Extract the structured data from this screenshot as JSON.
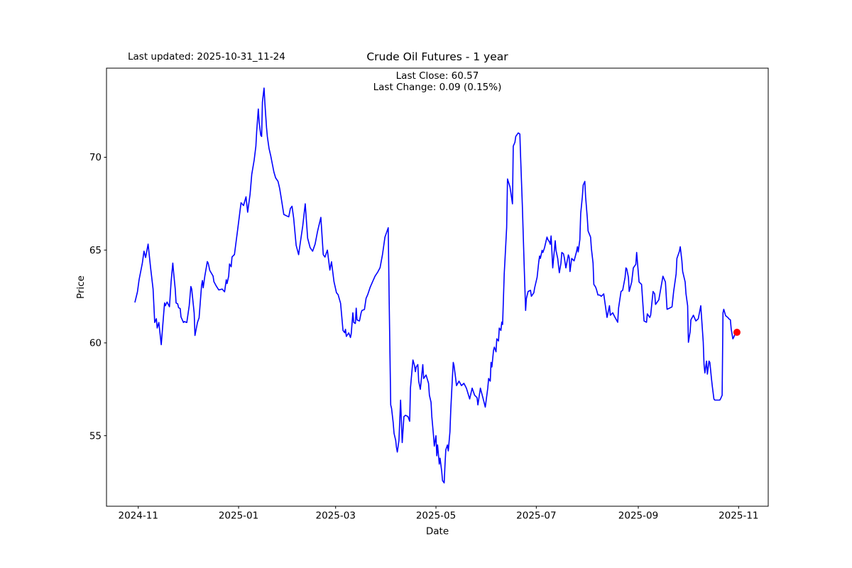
{
  "figure": {
    "last_updated": "Last updated: 2025-10-31_11-24",
    "title": "Crude Oil Futures - 1 year",
    "annotation": {
      "line1": "Last Close: 60.57",
      "line2": "Last Change: 0.09 (0.15%)"
    }
  },
  "chart_data": {
    "type": "line",
    "title": "Crude Oil Futures - 1 year",
    "xlabel": "Date",
    "ylabel": "Price",
    "series_name": "Crude Oil Futures close price",
    "line_color": "#0000ff",
    "marker_color": "#ff0000",
    "axis_color": "#000000",
    "background_color": "#ffffff",
    "grid": false,
    "legend": false,
    "last_close": 60.57,
    "last_change": 0.09,
    "last_change_pct": "0.15%",
    "x_unit": "days since 2024-10-30",
    "x_start_date": "2024-10-30",
    "x_end_date": "2025-10-31",
    "xlim_days": [
      -17.3,
      385
    ],
    "ylim": [
      51.2,
      74.8
    ],
    "yticks": [
      55,
      60,
      65,
      70
    ],
    "xticks": [
      {
        "label": "2024-11",
        "day": 2
      },
      {
        "label": "2025-01",
        "day": 63
      },
      {
        "label": "2025-03",
        "day": 122
      },
      {
        "label": "2025-05",
        "day": 183
      },
      {
        "label": "2025-07",
        "day": 244
      },
      {
        "label": "2025-09",
        "day": 306
      },
      {
        "label": "2025-11",
        "day": 367
      }
    ],
    "points": [
      [
        0,
        62.2
      ],
      [
        1.5,
        62.75
      ],
      [
        2.5,
        63.4
      ],
      [
        4.5,
        64.3
      ],
      [
        5.5,
        64.94
      ],
      [
        6.5,
        64.6
      ],
      [
        8,
        65.32
      ],
      [
        9.5,
        64.05
      ],
      [
        11,
        62.9
      ],
      [
        12,
        61.1
      ],
      [
        13,
        61.3
      ],
      [
        13.5,
        60.8
      ],
      [
        14.5,
        61.1
      ],
      [
        16,
        59.9
      ],
      [
        17.5,
        61.6
      ],
      [
        18,
        62.15
      ],
      [
        18.5,
        62.0
      ],
      [
        19.5,
        62.2
      ],
      [
        21,
        61.95
      ],
      [
        22,
        63.3
      ],
      [
        23,
        64.3
      ],
      [
        23.5,
        63.8
      ],
      [
        24.5,
        62.9
      ],
      [
        25,
        62.15
      ],
      [
        26,
        62.1
      ],
      [
        26.5,
        61.9
      ],
      [
        27.5,
        61.85
      ],
      [
        28,
        61.4
      ],
      [
        29.5,
        61.1
      ],
      [
        30,
        61.15
      ],
      [
        31.5,
        61.1
      ],
      [
        33,
        62.0
      ],
      [
        34,
        63.04
      ],
      [
        34.5,
        62.9
      ],
      [
        36,
        61.6
      ],
      [
        36.5,
        60.4
      ],
      [
        38,
        61.1
      ],
      [
        39,
        61.35
      ],
      [
        40.5,
        63.1
      ],
      [
        41,
        63.36
      ],
      [
        41.5,
        62.97
      ],
      [
        42.5,
        63.6
      ],
      [
        44,
        64.38
      ],
      [
        44.5,
        64.3
      ],
      [
        45.5,
        63.9
      ],
      [
        46.5,
        63.75
      ],
      [
        47.5,
        63.6
      ],
      [
        48,
        63.3
      ],
      [
        49.5,
        63.05
      ],
      [
        51,
        62.85
      ],
      [
        53,
        62.9
      ],
      [
        54.5,
        62.75
      ],
      [
        55.5,
        63.4
      ],
      [
        56,
        63.2
      ],
      [
        57,
        63.6
      ],
      [
        57.5,
        64.25
      ],
      [
        58.5,
        64.1
      ],
      [
        59,
        64.63
      ],
      [
        60.5,
        64.76
      ],
      [
        62.5,
        66.15
      ],
      [
        64.5,
        67.55
      ],
      [
        66,
        67.4
      ],
      [
        67.5,
        67.87
      ],
      [
        68.5,
        67.04
      ],
      [
        70,
        68.0
      ],
      [
        71,
        69.08
      ],
      [
        72.5,
        69.85
      ],
      [
        73.5,
        70.6
      ],
      [
        74,
        71.38
      ],
      [
        75,
        72.6
      ],
      [
        75.5,
        71.88
      ],
      [
        76.5,
        71.18
      ],
      [
        77,
        71.12
      ],
      [
        77.5,
        72.97
      ],
      [
        78.5,
        73.73
      ],
      [
        79,
        72.9
      ],
      [
        80,
        71.6
      ],
      [
        80.5,
        71.1
      ],
      [
        81.5,
        70.48
      ],
      [
        82.5,
        70.1
      ],
      [
        83.5,
        69.65
      ],
      [
        84.5,
        69.2
      ],
      [
        85.5,
        68.89
      ],
      [
        87,
        68.7
      ],
      [
        88,
        68.32
      ],
      [
        89,
        67.75
      ],
      [
        90.5,
        66.92
      ],
      [
        92,
        66.85
      ],
      [
        93.5,
        66.79
      ],
      [
        94.5,
        67.24
      ],
      [
        95.5,
        67.36
      ],
      [
        96.5,
        66.72
      ],
      [
        98,
        65.26
      ],
      [
        99.5,
        64.75
      ],
      [
        100.5,
        65.38
      ],
      [
        102,
        66.3
      ],
      [
        103.5,
        67.49
      ],
      [
        105,
        65.64
      ],
      [
        106.5,
        65.13
      ],
      [
        108,
        64.94
      ],
      [
        109.5,
        65.32
      ],
      [
        111,
        66.0
      ],
      [
        113,
        66.76
      ],
      [
        114.5,
        64.75
      ],
      [
        115.5,
        64.62
      ],
      [
        117,
        65.0
      ],
      [
        118.5,
        63.92
      ],
      [
        119.5,
        64.37
      ],
      [
        121,
        63.3
      ],
      [
        122.5,
        62.7
      ],
      [
        123.5,
        62.6
      ],
      [
        125,
        62.13
      ],
      [
        126.5,
        60.67
      ],
      [
        127.5,
        60.55
      ],
      [
        128,
        60.73
      ],
      [
        128.5,
        60.35
      ],
      [
        130,
        60.54
      ],
      [
        131,
        60.29
      ],
      [
        131.5,
        60.5
      ],
      [
        132.5,
        61.62
      ],
      [
        133,
        61.1
      ],
      [
        134,
        61.05
      ],
      [
        134.5,
        61.87
      ],
      [
        135,
        61.24
      ],
      [
        136.5,
        61.18
      ],
      [
        137.5,
        61.62
      ],
      [
        138,
        61.75
      ],
      [
        139.5,
        61.8
      ],
      [
        140.5,
        62.4
      ],
      [
        141.5,
        62.6
      ],
      [
        143,
        63.0
      ],
      [
        144.5,
        63.3
      ],
      [
        146,
        63.6
      ],
      [
        147.5,
        63.8
      ],
      [
        149,
        64.05
      ],
      [
        150.5,
        64.75
      ],
      [
        152,
        65.7
      ],
      [
        153,
        65.95
      ],
      [
        154,
        66.2
      ],
      [
        154.5,
        62.65
      ],
      [
        155.5,
        56.66
      ],
      [
        156,
        56.47
      ],
      [
        157,
        55.7
      ],
      [
        157.5,
        55.13
      ],
      [
        158.5,
        54.75
      ],
      [
        159,
        54.37
      ],
      [
        159.5,
        54.12
      ],
      [
        160.5,
        54.75
      ],
      [
        161.5,
        56.92
      ],
      [
        162.5,
        54.63
      ],
      [
        163.5,
        56.03
      ],
      [
        164.5,
        56.1
      ],
      [
        166,
        56.03
      ],
      [
        167,
        55.78
      ],
      [
        167.5,
        57.56
      ],
      [
        168.5,
        58.57
      ],
      [
        169,
        59.08
      ],
      [
        170,
        58.77
      ],
      [
        170.5,
        58.45
      ],
      [
        171,
        58.7
      ],
      [
        172,
        58.83
      ],
      [
        172.5,
        57.94
      ],
      [
        173.5,
        57.5
      ],
      [
        174,
        57.94
      ],
      [
        175,
        58.83
      ],
      [
        175.5,
        58.08
      ],
      [
        177,
        58.27
      ],
      [
        178.5,
        57.82
      ],
      [
        179,
        57.18
      ],
      [
        180,
        56.8
      ],
      [
        180.5,
        56.03
      ],
      [
        181.5,
        55.0
      ],
      [
        182,
        54.44
      ],
      [
        183,
        55.0
      ],
      [
        183.5,
        53.92
      ],
      [
        184,
        54.5
      ],
      [
        185,
        53.47
      ],
      [
        185.5,
        53.79
      ],
      [
        186.5,
        53.09
      ],
      [
        187,
        52.58
      ],
      [
        188,
        52.46
      ],
      [
        188.5,
        53.47
      ],
      [
        189,
        54.24
      ],
      [
        190,
        54.5
      ],
      [
        190.5,
        54.18
      ],
      [
        191.5,
        55.2
      ],
      [
        192,
        56.4
      ],
      [
        193,
        58.14
      ],
      [
        193.5,
        58.95
      ],
      [
        194,
        58.77
      ],
      [
        195,
        58.08
      ],
      [
        195.5,
        57.7
      ],
      [
        197,
        57.94
      ],
      [
        198.5,
        57.7
      ],
      [
        200,
        57.82
      ],
      [
        201.5,
        57.56
      ],
      [
        203.5,
        56.98
      ],
      [
        205,
        57.56
      ],
      [
        206.5,
        57.18
      ],
      [
        208,
        57.05
      ],
      [
        208.5,
        56.66
      ],
      [
        210,
        57.56
      ],
      [
        211.5,
        57.05
      ],
      [
        213,
        56.54
      ],
      [
        214.5,
        57.56
      ],
      [
        215,
        58.08
      ],
      [
        216,
        57.94
      ],
      [
        216.5,
        58.95
      ],
      [
        217,
        58.7
      ],
      [
        218,
        59.6
      ],
      [
        218.5,
        59.77
      ],
      [
        219.5,
        59.52
      ],
      [
        220,
        60.22
      ],
      [
        221,
        60.1
      ],
      [
        221.5,
        60.8
      ],
      [
        222.5,
        60.67
      ],
      [
        223,
        61.12
      ],
      [
        223.5,
        60.99
      ],
      [
        224.5,
        63.74
      ],
      [
        225,
        64.51
      ],
      [
        226,
        66.22
      ],
      [
        226.5,
        68.83
      ],
      [
        228,
        68.4
      ],
      [
        229.5,
        67.49
      ],
      [
        230,
        70.6
      ],
      [
        231,
        70.8
      ],
      [
        231.5,
        71.12
      ],
      [
        233,
        71.31
      ],
      [
        234,
        71.25
      ],
      [
        234.5,
        69.97
      ],
      [
        235.5,
        67.4
      ],
      [
        236.5,
        64.5
      ],
      [
        237.5,
        61.75
      ],
      [
        238,
        62.39
      ],
      [
        239,
        62.77
      ],
      [
        240.5,
        62.83
      ],
      [
        241,
        62.51
      ],
      [
        242.5,
        62.7
      ],
      [
        243,
        62.96
      ],
      [
        244.5,
        63.53
      ],
      [
        245.5,
        64.36
      ],
      [
        246,
        64.68
      ],
      [
        246.5,
        64.55
      ],
      [
        247.5,
        64.99
      ],
      [
        248,
        64.87
      ],
      [
        249,
        65.12
      ],
      [
        250.5,
        65.7
      ],
      [
        251,
        65.57
      ],
      [
        252,
        65.44
      ],
      [
        252.5,
        65.31
      ],
      [
        253,
        65.76
      ],
      [
        254,
        64.04
      ],
      [
        255.5,
        65.5
      ],
      [
        256,
        64.99
      ],
      [
        257,
        64.55
      ],
      [
        257.5,
        64.17
      ],
      [
        258,
        63.78
      ],
      [
        259,
        64.3
      ],
      [
        259.5,
        64.87
      ],
      [
        260.5,
        64.8
      ],
      [
        261,
        64.61
      ],
      [
        262,
        64.04
      ],
      [
        263.5,
        64.74
      ],
      [
        264,
        64.61
      ],
      [
        264.5,
        63.84
      ],
      [
        265.5,
        64.55
      ],
      [
        267,
        64.42
      ],
      [
        268.5,
        64.93
      ],
      [
        269,
        65.18
      ],
      [
        269.5,
        64.9
      ],
      [
        270.5,
        65.57
      ],
      [
        271,
        66.97
      ],
      [
        272,
        67.87
      ],
      [
        272.5,
        68.5
      ],
      [
        273.5,
        68.7
      ],
      [
        274,
        67.87
      ],
      [
        275,
        66.72
      ],
      [
        275.5,
        66.03
      ],
      [
        277,
        65.7
      ],
      [
        277.5,
        65.06
      ],
      [
        278.5,
        64.3
      ],
      [
        279,
        63.15
      ],
      [
        280,
        63.02
      ],
      [
        280.5,
        62.9
      ],
      [
        281.5,
        62.58
      ],
      [
        282.5,
        62.58
      ],
      [
        283.5,
        62.51
      ],
      [
        285,
        62.64
      ],
      [
        287,
        61.37
      ],
      [
        288.5,
        62.0
      ],
      [
        289,
        61.49
      ],
      [
        290.5,
        61.62
      ],
      [
        291.5,
        61.43
      ],
      [
        293.5,
        61.11
      ],
      [
        294,
        61.87
      ],
      [
        295.5,
        62.77
      ],
      [
        296.5,
        62.83
      ],
      [
        298,
        63.53
      ],
      [
        298.5,
        64.04
      ],
      [
        299,
        63.98
      ],
      [
        300,
        63.53
      ],
      [
        300.5,
        62.77
      ],
      [
        302,
        63.28
      ],
      [
        303,
        64.04
      ],
      [
        304.5,
        64.23
      ],
      [
        305,
        64.87
      ],
      [
        306.5,
        63.28
      ],
      [
        308,
        63.15
      ],
      [
        309.5,
        61.18
      ],
      [
        311,
        61.11
      ],
      [
        311.5,
        61.56
      ],
      [
        313,
        61.37
      ],
      [
        313.5,
        61.49
      ],
      [
        315,
        62.77
      ],
      [
        316,
        62.64
      ],
      [
        316.5,
        62.07
      ],
      [
        318.5,
        62.32
      ],
      [
        321,
        63.59
      ],
      [
        322.5,
        63.28
      ],
      [
        323.5,
        61.81
      ],
      [
        325,
        61.87
      ],
      [
        326.5,
        61.94
      ],
      [
        327.5,
        62.77
      ],
      [
        329,
        63.72
      ],
      [
        329.5,
        64.55
      ],
      [
        331,
        64.93
      ],
      [
        331.5,
        65.18
      ],
      [
        332.5,
        64.42
      ],
      [
        333,
        63.85
      ],
      [
        334.5,
        63.28
      ],
      [
        335,
        62.64
      ],
      [
        336,
        62.0
      ],
      [
        336.5,
        60.03
      ],
      [
        337.5,
        60.6
      ],
      [
        338,
        61.24
      ],
      [
        339.5,
        61.49
      ],
      [
        341,
        61.18
      ],
      [
        342.5,
        61.3
      ],
      [
        344,
        62.0
      ],
      [
        345.5,
        60.03
      ],
      [
        346,
        58.83
      ],
      [
        346.5,
        58.38
      ],
      [
        347.5,
        59.02
      ],
      [
        348,
        58.32
      ],
      [
        349,
        59.02
      ],
      [
        349.5,
        58.95
      ],
      [
        350.5,
        58.06
      ],
      [
        351,
        57.68
      ],
      [
        352,
        56.98
      ],
      [
        352.5,
        56.92
      ],
      [
        354,
        56.92
      ],
      [
        355.5,
        56.92
      ],
      [
        356,
        56.98
      ],
      [
        357,
        57.18
      ],
      [
        357.5,
        61.62
      ],
      [
        358,
        61.81
      ],
      [
        359,
        61.49
      ],
      [
        359.5,
        61.43
      ],
      [
        360.5,
        61.37
      ],
      [
        361,
        61.3
      ],
      [
        362,
        61.24
      ],
      [
        362.5,
        60.73
      ],
      [
        363.5,
        60.22
      ],
      [
        364,
        60.29
      ],
      [
        364.5,
        60.41
      ],
      [
        365.5,
        60.47
      ],
      [
        366,
        60.57
      ]
    ]
  }
}
